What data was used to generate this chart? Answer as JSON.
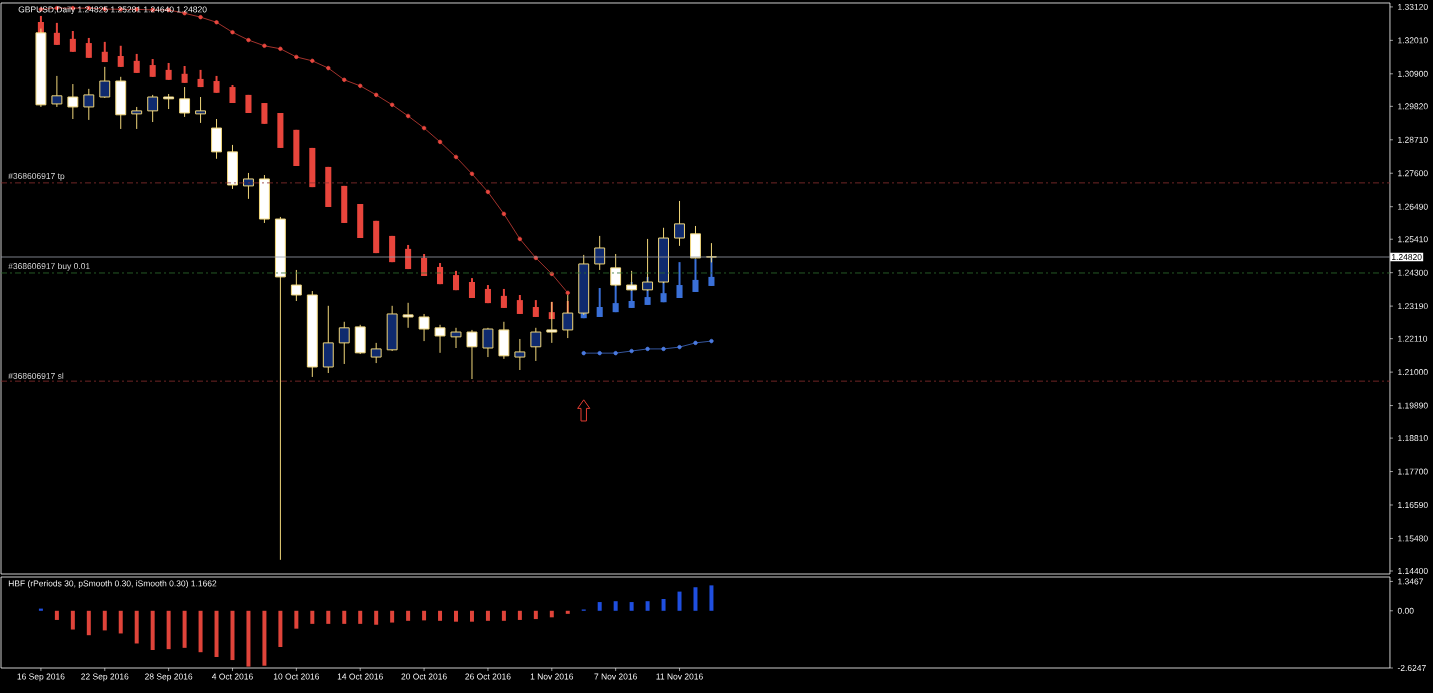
{
  "chart_data": [
    {
      "type": "candlestick",
      "title": "GBPUSD,Daily 1.24825 1.25281 1.24640 1.24820",
      "categories": [
        null,
        null,
        null,
        null,
        null,
        null,
        null,
        null,
        null,
        null,
        null,
        null,
        null,
        null,
        null,
        null,
        null,
        null,
        null,
        null,
        null,
        null,
        null,
        null,
        null,
        null,
        null,
        null,
        null,
        null,
        null,
        null,
        null,
        null,
        null,
        null,
        null,
        null,
        null,
        null,
        null,
        null,
        null,
        null,
        null,
        null,
        null,
        null,
        null,
        null,
        null,
        null,
        null,
        null,
        null,
        null,
        null,
        null,
        null,
        null,
        null,
        null,
        null,
        null,
        null,
        null,
        null,
        null,
        null,
        null,
        null,
        null,
        null,
        null,
        null,
        null,
        null,
        null,
        null,
        null,
        null,
        null,
        null,
        null,
        null,
        null,
        null
      ],
      "ohlc": [
        null,
        null,
        [
          1.3226,
          1.324,
          1.298,
          1.2987
        ],
        [
          1.299,
          1.3083,
          1.298,
          1.3017
        ],
        [
          1.3013,
          1.3056,
          1.294,
          1.298
        ],
        [
          1.298,
          1.304,
          1.2937,
          1.302
        ],
        [
          1.3013,
          1.3113,
          1.301,
          1.3066
        ],
        [
          1.3066,
          1.308,
          1.2907,
          1.2954
        ],
        [
          1.2957,
          1.298,
          1.2907,
          1.2967
        ],
        [
          1.2967,
          1.302,
          1.293,
          1.3013
        ],
        [
          1.3013,
          1.3023,
          1.2973,
          1.3007
        ],
        [
          1.3007,
          1.3046,
          1.2947,
          1.296
        ],
        [
          1.2957,
          1.3013,
          1.2927,
          1.2967
        ],
        [
          1.291,
          1.294,
          1.2808,
          1.2831
        ],
        [
          1.2831,
          1.2854,
          1.2708,
          1.2721
        ],
        [
          1.2718,
          1.2761,
          1.2675,
          1.2741
        ],
        [
          1.2741,
          1.2754,
          1.2595,
          1.2608
        ],
        [
          1.2608,
          1.2615,
          1.1477,
          1.2416
        ],
        [
          1.2389,
          1.2439,
          1.2336,
          1.2356
        ],
        [
          1.2356,
          1.2369,
          1.2084,
          1.2117
        ],
        [
          1.2117,
          1.232,
          1.2097,
          1.2197
        ],
        [
          1.2197,
          1.2267,
          1.2127,
          1.2247
        ],
        [
          1.225,
          1.2257,
          1.216,
          1.2164
        ],
        [
          1.215,
          1.2197,
          1.213,
          1.2177
        ],
        [
          1.2174,
          1.232,
          1.217,
          1.2293
        ],
        [
          1.229,
          1.233,
          1.2247,
          1.2283
        ],
        [
          1.2283,
          1.2293,
          1.2203,
          1.2243
        ],
        [
          1.2247,
          1.2257,
          1.2164,
          1.222
        ],
        [
          1.2217,
          1.2247,
          1.218,
          1.2233
        ],
        [
          1.2233,
          1.224,
          1.2077,
          1.2184
        ],
        [
          1.218,
          1.2247,
          1.215,
          1.2243
        ],
        [
          1.224,
          1.2267,
          1.2144,
          1.2154
        ],
        [
          1.215,
          1.221,
          1.2107,
          1.2167
        ],
        [
          1.2184,
          1.2247,
          1.2137,
          1.2233
        ],
        [
          1.224,
          1.2333,
          1.2197,
          1.2233
        ],
        [
          1.224,
          1.2356,
          1.2213,
          1.2296
        ],
        [
          1.2296,
          1.2489,
          1.229,
          1.2459
        ],
        [
          1.2459,
          1.2552,
          1.2439,
          1.2512
        ],
        [
          1.2446,
          1.2492,
          1.2385,
          1.2389
        ],
        [
          1.2389,
          1.2436,
          1.237,
          1.2373
        ],
        [
          1.2373,
          1.2542,
          1.237,
          1.2399
        ],
        [
          1.2399,
          1.2579,
          1.2395,
          1.2545
        ],
        [
          1.2545,
          1.2668,
          1.2519,
          1.2592
        ],
        [
          1.2559,
          1.2585,
          1.2477,
          1.2479
        ],
        [
          1.24825,
          1.25281,
          1.2464,
          1.2482
        ],
        null,
        null,
        null,
        null,
        null,
        null,
        null,
        null,
        null,
        null,
        null,
        null,
        null,
        null,
        null,
        null,
        null,
        null,
        null,
        null,
        null,
        null,
        null,
        null,
        null,
        null,
        null,
        null,
        null,
        null,
        null,
        null,
        null,
        null,
        null,
        null,
        null,
        null,
        null,
        null,
        null,
        null
      ],
      "colors": [
        null,
        null,
        "#ffffff",
        "#0f2a6e",
        "#ffffff",
        "#0f2a6e",
        "#0f2a6e",
        "#ffffff",
        "#0f2a6e",
        "#0f2a6e",
        "#ffffff",
        "#ffffff",
        "#0f2a6e",
        "#ffffff",
        "#ffffff",
        "#0f2a6e",
        "#ffffff",
        "#ffffff",
        "#ffffff",
        "#ffffff",
        "#0f2a6e",
        "#0f2a6e",
        "#ffffff",
        "#0f2a6e",
        "#0f2a6e",
        "#ffffff",
        "#ffffff",
        "#ffffff",
        "#0f2a6e",
        "#ffffff",
        "#0f2a6e",
        "#ffffff",
        "#0f2a6e",
        "#0f2a6e",
        "#ffffff",
        "#0f2a6e",
        "#0f2a6e",
        "#0f2a6e",
        "#ffffff",
        "#ffffff",
        "#0f2a6e",
        "#0f2a6e",
        "#0f2a6e",
        "#ffffff",
        "#ffffff",
        null,
        null,
        null,
        null,
        null,
        null,
        null,
        null,
        null,
        null,
        null,
        null,
        null,
        null,
        null,
        null,
        null,
        null,
        null,
        null,
        null,
        null,
        null,
        null,
        null,
        null,
        null,
        null,
        null,
        null,
        null,
        null,
        null,
        null,
        null,
        null,
        null,
        null,
        null,
        null,
        null,
        null
      ],
      "color": "#f0d67a",
      "series": [
        {
          "type": "line",
          "color": "#e8473f",
          "marker": "circle",
          "values": [
            null,
            null,
            1.3304,
            1.3308,
            1.3308,
            1.3308,
            1.3305,
            1.3304,
            1.3304,
            1.3302,
            1.3302,
            1.3291,
            1.3278,
            1.3261,
            1.3228,
            1.3202,
            1.3183,
            1.3173,
            1.3146,
            1.3133,
            1.3109,
            1.307,
            1.305,
            1.302,
            1.2987,
            1.295,
            1.291,
            1.2864,
            1.2814,
            1.2758,
            1.2698,
            1.2625,
            1.2542,
            1.2479,
            1.2426,
            1.2363,
            null,
            null,
            null,
            null,
            null,
            null,
            null,
            null,
            null,
            null,
            null,
            null,
            null,
            null,
            null,
            null,
            null,
            null,
            null,
            null,
            null,
            null,
            null,
            null,
            null,
            null,
            null,
            null,
            null,
            null,
            null,
            null,
            null,
            null,
            null,
            null,
            null,
            null,
            null,
            null,
            null,
            null,
            null,
            null,
            null,
            null,
            null,
            null,
            null,
            null,
            null
          ]
        },
        {
          "type": "line",
          "color": "#4a7ae0",
          "marker": "circle",
          "values": [
            null,
            null,
            null,
            null,
            null,
            null,
            null,
            null,
            null,
            null,
            null,
            null,
            null,
            null,
            null,
            null,
            null,
            null,
            null,
            null,
            null,
            null,
            null,
            null,
            null,
            null,
            null,
            null,
            null,
            null,
            null,
            null,
            null,
            null,
            null,
            null,
            1.2163,
            1.2163,
            1.2163,
            1.217,
            1.2177,
            1.2177,
            1.2183,
            1.2197,
            1.2203,
            null,
            null,
            null,
            null,
            null,
            null,
            null,
            null,
            null,
            null,
            null,
            null,
            null,
            null,
            null,
            null,
            null,
            null,
            null,
            null,
            null,
            null,
            null,
            null,
            null,
            null,
            null,
            null,
            null,
            null,
            null,
            null,
            null,
            null,
            null,
            null,
            null,
            null,
            null,
            null,
            null,
            null
          ]
        },
        {
          "type": "candlestick",
          "color": "#e8453c",
          "ohlc": [
            null,
            null,
            [
              1.3262,
              1.3282,
              1.3216,
              1.3216
            ],
            [
              1.3226,
              1.3259,
              1.3186,
              1.3186
            ],
            [
              1.3206,
              1.3232,
              1.3163,
              1.3163
            ],
            [
              1.3192,
              1.3209,
              1.3143,
              1.3143
            ],
            [
              1.3163,
              1.3196,
              1.3129,
              1.3129
            ],
            [
              1.3149,
              1.3183,
              1.3113,
              1.3113
            ],
            [
              1.3133,
              1.3156,
              1.3093,
              1.3093
            ],
            [
              1.3119,
              1.3139,
              1.308,
              1.308
            ],
            [
              1.3103,
              1.3126,
              1.307,
              1.307
            ],
            [
              1.309,
              1.3116,
              1.306,
              1.306
            ],
            [
              1.3073,
              1.3103,
              1.3046,
              1.3046
            ],
            [
              1.3066,
              1.3083,
              1.3027,
              1.3027
            ],
            [
              1.3046,
              1.3053,
              1.2993,
              1.2993
            ],
            [
              1.302,
              1.302,
              1.296,
              1.296
            ],
            [
              1.2993,
              1.2993,
              1.2924,
              1.2924
            ],
            [
              1.296,
              1.296,
              1.2844,
              1.2844
            ],
            [
              1.2904,
              1.2904,
              1.2784,
              1.2784
            ],
            [
              1.2844,
              1.2844,
              1.2714,
              1.2714
            ],
            [
              1.2781,
              1.2781,
              1.2648,
              1.2648
            ],
            [
              1.2718,
              1.2718,
              1.2595,
              1.2595
            ],
            [
              1.2658,
              1.2658,
              1.2545,
              1.2545
            ],
            [
              1.2602,
              1.2602,
              1.2495,
              1.2495
            ],
            [
              1.2552,
              1.2552,
              1.2465,
              1.2465
            ],
            [
              1.2509,
              1.2522,
              1.2442,
              1.2442
            ],
            [
              1.2479,
              1.2492,
              1.2419,
              1.2419
            ],
            [
              1.2449,
              1.2462,
              1.2392,
              1.2392
            ],
            [
              1.2422,
              1.2436,
              1.2372,
              1.2372
            ],
            [
              1.2399,
              1.2412,
              1.2346,
              1.2346
            ],
            [
              1.2376,
              1.2389,
              1.2329,
              1.2329
            ],
            [
              1.2353,
              1.2376,
              1.2313,
              1.2313
            ],
            [
              1.2339,
              1.2356,
              1.2293,
              1.2293
            ],
            [
              1.2316,
              1.2339,
              1.2283,
              1.2283
            ],
            [
              1.2299,
              1.2333,
              1.2276,
              1.2276
            ],
            [
              1.2296,
              1.2336,
              1.2276,
              1.2276
            ],
            null,
            null,
            null,
            null,
            null,
            null,
            null,
            null,
            null,
            null,
            null,
            null,
            null,
            null,
            null,
            null,
            null,
            null,
            null,
            null,
            null,
            null,
            null,
            null,
            null,
            null,
            null,
            null,
            null,
            null,
            null,
            null,
            null,
            null,
            null,
            null,
            null,
            null,
            null,
            null,
            null,
            null,
            null,
            null,
            null,
            null,
            null,
            null,
            null,
            null,
            null
          ]
        },
        {
          "type": "candlestick",
          "color": "#3a70d8",
          "ohlc": [
            null,
            null,
            null,
            null,
            null,
            null,
            null,
            null,
            null,
            null,
            null,
            null,
            null,
            null,
            null,
            null,
            null,
            null,
            null,
            null,
            null,
            null,
            null,
            null,
            null,
            null,
            null,
            null,
            null,
            null,
            null,
            null,
            null,
            null,
            null,
            null,
            [
              1.2316,
              1.2353,
              1.2279,
              1.2279
            ],
            [
              1.2316,
              1.2379,
              1.2283,
              1.2283
            ],
            [
              1.2329,
              1.2392,
              1.2299,
              1.2299
            ],
            [
              1.2336,
              1.2399,
              1.2313,
              1.2313
            ],
            [
              1.2349,
              1.2416,
              1.2323,
              1.2323
            ],
            [
              1.2362,
              1.2436,
              1.2332,
              1.2332
            ],
            [
              1.2389,
              1.2465,
              1.2346,
              1.2346
            ],
            [
              1.2406,
              1.2475,
              1.2366,
              1.2366
            ],
            [
              1.2416,
              1.2485,
              1.2386,
              1.2386
            ],
            null,
            null,
            null,
            null,
            null,
            null,
            null,
            null,
            null,
            null,
            null,
            null,
            null,
            null,
            null,
            null,
            null,
            null,
            null,
            null,
            null,
            null,
            null,
            null,
            null,
            null,
            null,
            null,
            null,
            null,
            null,
            null,
            null,
            null,
            null,
            null,
            null,
            null,
            null,
            null,
            null,
            null
          ]
        }
      ],
      "ylim": [
        1.143,
        1.3325
      ],
      "yticks": [
        {
          "value": 1.3312,
          "label": "1.33120"
        },
        {
          "value": 1.3201,
          "label": "1.32010"
        },
        {
          "value": 1.309,
          "label": "1.30900"
        },
        {
          "value": 1.2982,
          "label": "1.29820"
        },
        {
          "value": 1.2871,
          "label": "1.28710"
        },
        {
          "value": 1.276,
          "label": "1.27600"
        },
        {
          "value": 1.2649,
          "label": "1.26490"
        },
        {
          "value": 1.2541,
          "label": "1.25410"
        },
        {
          "value": 1.243,
          "label": "1.24300"
        },
        {
          "value": 1.2319,
          "label": "1.23190"
        },
        {
          "value": 1.2211,
          "label": "1.22110"
        },
        {
          "value": 1.21,
          "label": "1.21000"
        },
        {
          "value": 1.1989,
          "label": "1.19890"
        },
        {
          "value": 1.1881,
          "label": "1.18810"
        },
        {
          "value": 1.177,
          "label": "1.17700"
        },
        {
          "value": 1.1659,
          "label": "1.16590"
        },
        {
          "value": 1.1548,
          "label": "1.15480"
        },
        {
          "value": 1.144,
          "label": "1.14400"
        }
      ],
      "ref_lines": [
        {
          "axis": "y",
          "value": 1.2728,
          "label": "#368606917 tp",
          "color": "#8c2e2e",
          "line_style": "dashed"
        },
        {
          "axis": "y",
          "value": 1.2429,
          "label": "#368606917 buy 0.01",
          "color": "#2f6e2f",
          "line_style": "dashed"
        },
        {
          "axis": "y",
          "value": 1.207,
          "label": "#368606917 sl",
          "color": "#8c2e2e",
          "line_style": "dashed"
        },
        {
          "axis": "y",
          "value": 1.2482,
          "label": "1.24820",
          "color": "#9aa0aa",
          "line_style": "solid"
        }
      ],
      "tick_labels": "y"
    },
    {
      "type": "bar",
      "title": "HBF  (rPeriods 30, pSmooth 0.30, iSmooth 0.30)   1.1662",
      "categories": [
        null,
        null,
        "16 Sep 2016",
        null,
        null,
        null,
        "22 Sep 2016",
        null,
        null,
        null,
        "28 Sep 2016",
        null,
        null,
        null,
        "4 Oct 2016",
        null,
        null,
        null,
        "10 Oct 2016",
        null,
        null,
        null,
        "14 Oct 2016",
        null,
        null,
        null,
        "20 Oct 2016",
        null,
        null,
        null,
        "26 Oct 2016",
        null,
        null,
        null,
        "1 Nov 2016",
        null,
        null,
        null,
        "7 Nov 2016",
        null,
        null,
        null,
        "11 Nov 2016",
        null,
        null,
        null,
        null,
        null,
        null,
        null,
        null,
        null,
        null,
        null,
        null,
        null,
        null,
        null,
        null,
        null,
        null,
        null,
        null,
        null,
        null,
        null,
        null,
        null,
        null,
        null,
        null,
        null,
        null,
        null,
        null,
        null,
        null,
        null,
        null,
        null,
        null,
        null,
        null,
        null,
        null,
        null,
        null
      ],
      "values": [
        null,
        null,
        0.1,
        -0.42,
        -0.86,
        -1.12,
        -0.9,
        -1.04,
        -1.5,
        -1.8,
        -1.76,
        -1.7,
        -1.9,
        -2.12,
        -2.26,
        -2.56,
        -2.52,
        -1.66,
        -0.82,
        -0.6,
        -0.6,
        -0.6,
        -0.6,
        -0.64,
        -0.54,
        -0.46,
        -0.44,
        -0.46,
        -0.5,
        -0.5,
        -0.46,
        -0.46,
        -0.42,
        -0.38,
        -0.3,
        -0.14,
        0.06,
        0.4,
        0.44,
        0.4,
        0.44,
        0.54,
        0.88,
        1.08,
        1.1662,
        null,
        null,
        null,
        null,
        null,
        null,
        null,
        null,
        null,
        null,
        null,
        null,
        null,
        null,
        null,
        null,
        null,
        null,
        null,
        null,
        null,
        null,
        null,
        null,
        null,
        null,
        null,
        null,
        null,
        null,
        null,
        null,
        null,
        null,
        null,
        null,
        null,
        null,
        null,
        null,
        null,
        null
      ],
      "colors": [
        null,
        null,
        "#1f4fe0",
        "#e0443a",
        "#e0443a",
        "#e0443a",
        "#e0443a",
        "#e0443a",
        "#e0443a",
        "#e0443a",
        "#e0443a",
        "#e0443a",
        "#e0443a",
        "#e0443a",
        "#e0443a",
        "#e0443a",
        "#e0443a",
        "#e0443a",
        "#e0443a",
        "#e0443a",
        "#e0443a",
        "#e0443a",
        "#e0443a",
        "#e0443a",
        "#e0443a",
        "#e0443a",
        "#e0443a",
        "#e0443a",
        "#e0443a",
        "#e0443a",
        "#e0443a",
        "#e0443a",
        "#e0443a",
        "#e0443a",
        "#e0443a",
        "#e0443a",
        "#1f4fe0",
        "#1f4fe0",
        "#1f4fe0",
        "#1f4fe0",
        "#1f4fe0",
        "#1f4fe0",
        "#1f4fe0",
        "#1f4fe0",
        "#1f4fe0",
        null,
        null,
        null,
        null,
        null,
        null,
        null,
        null,
        null,
        null,
        null,
        null,
        null,
        null,
        null,
        null,
        null,
        null,
        null,
        null,
        null,
        null,
        null,
        null,
        null,
        null,
        null,
        null,
        null,
        null,
        null,
        null,
        null,
        null,
        null,
        null,
        null,
        null,
        null,
        null,
        null,
        null
      ],
      "ylim": [
        -2.6247,
        1.55
      ],
      "yticks": [
        1.3467,
        {
          "value": 0,
          "label": "0.00"
        },
        -2.6247
      ]
    }
  ]
}
